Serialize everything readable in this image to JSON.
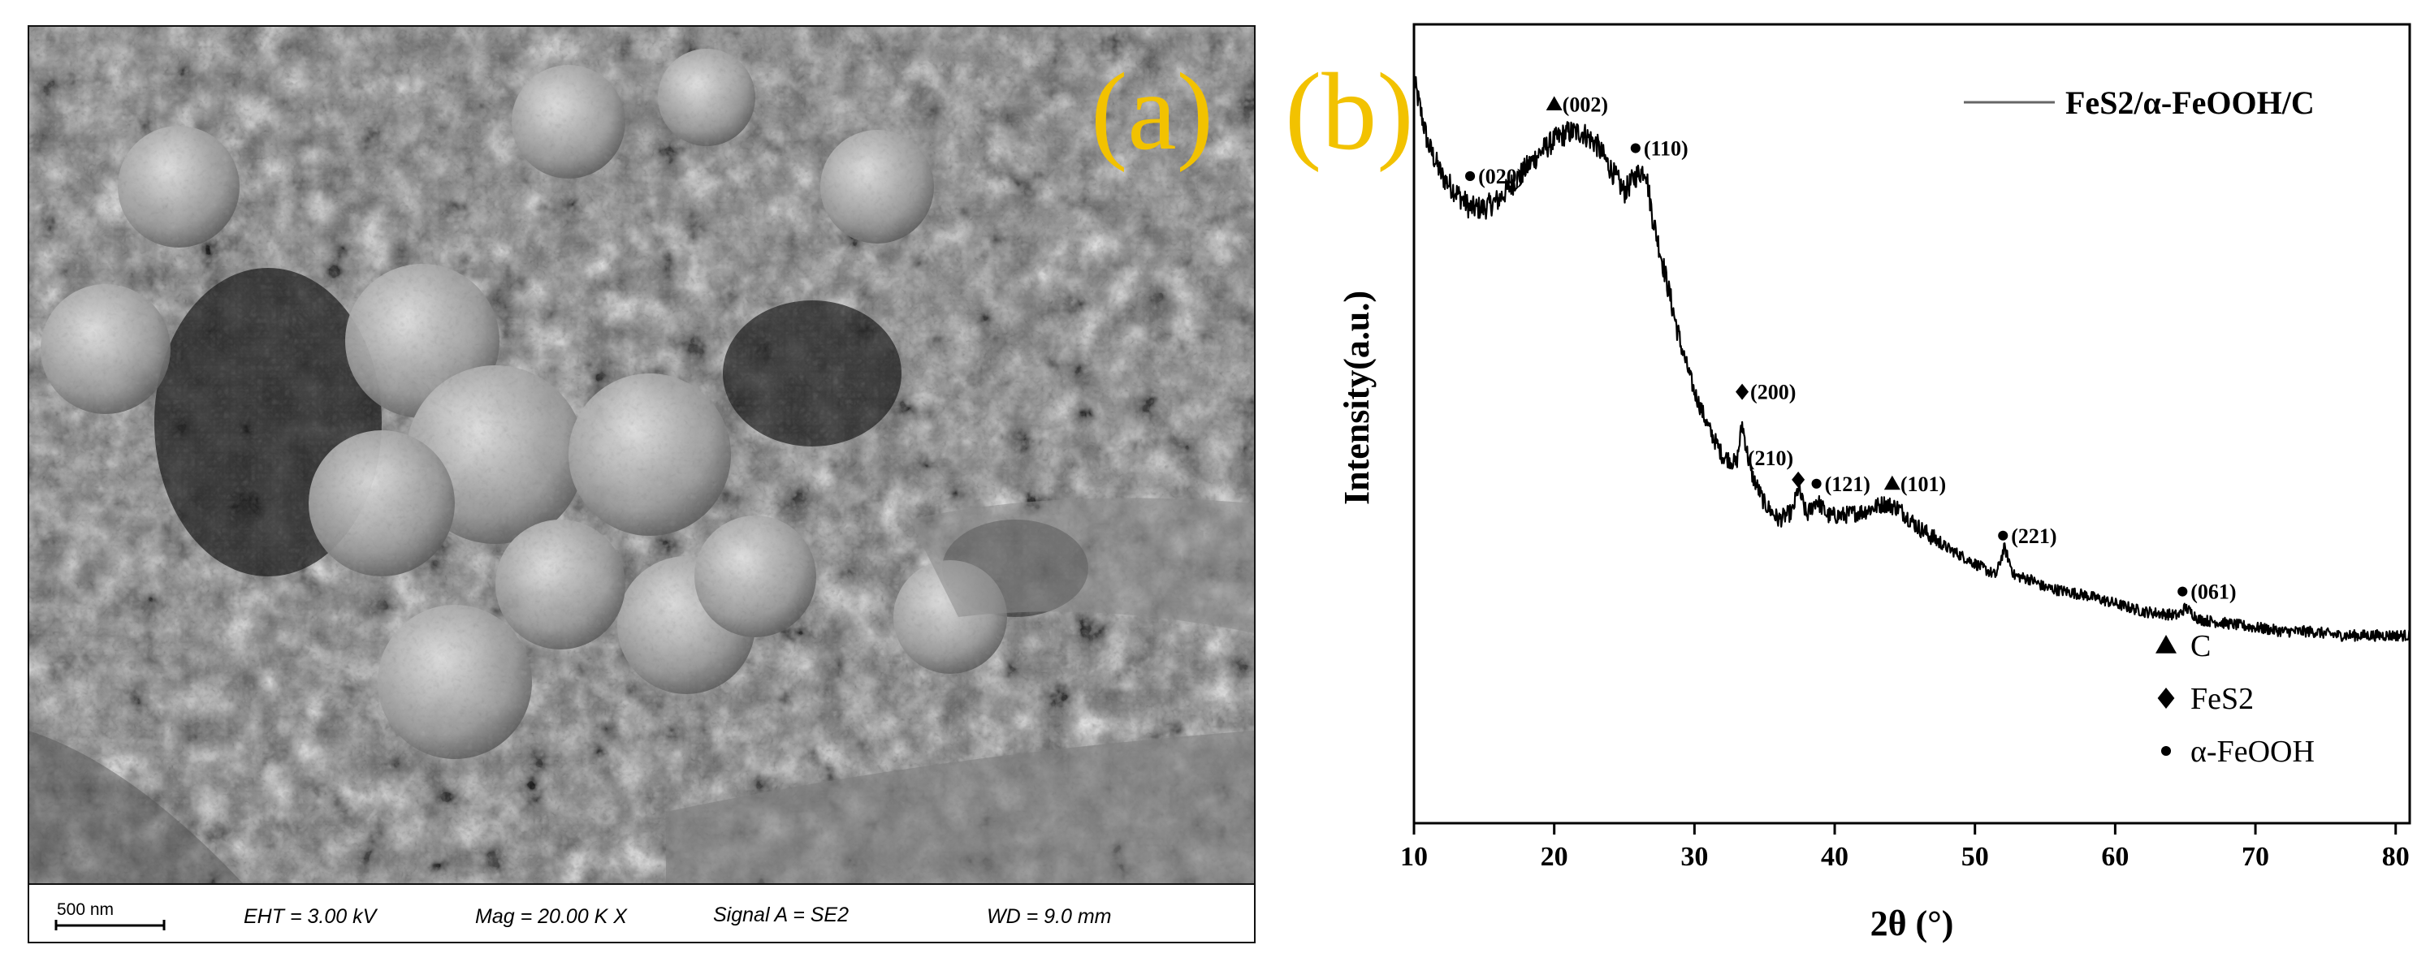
{
  "panel_a": {
    "label": "(a)",
    "databar": {
      "scale_bar": "500 nm",
      "eht": "EHT =  3.00 kV",
      "mag": "Mag =   20.00 K X",
      "signal": "Signal A = SE2",
      "wd": "WD =  9.0 mm"
    }
  },
  "panel_b": {
    "label": "(b)",
    "legend_series": "FeS2/α-FeOOH/C",
    "legend_markers": [
      {
        "marker": "triangle",
        "label": "C"
      },
      {
        "marker": "diamond",
        "label": "FeS2"
      },
      {
        "marker": "circle",
        "label": "α-FeOOH"
      }
    ]
  },
  "chart_data": {
    "type": "line",
    "title": "",
    "xlabel": "2θ  (°)",
    "ylabel": "Intensity(a.u.)",
    "xlim": [
      10,
      81
    ],
    "ylim": [
      0,
      100
    ],
    "x_ticks": [
      10,
      20,
      30,
      40,
      50,
      60,
      70,
      80
    ],
    "y_ticks": [],
    "grid": false,
    "legend_placement": "top-right",
    "series": [
      {
        "name": "FeS2/α-FeOOH/C",
        "color": "#000000",
        "x": [
          10,
          11,
          12,
          13,
          14,
          15,
          16,
          17,
          18,
          19,
          20,
          21,
          22,
          23,
          24,
          25,
          25.8,
          26.5,
          27,
          28,
          29,
          30,
          31,
          32,
          33,
          33.4,
          34,
          35,
          36,
          37,
          37.4,
          38,
          38.7,
          39.5,
          40.5,
          42,
          43.5,
          44.5,
          46,
          48,
          50,
          51.5,
          52.1,
          52.8,
          54,
          55,
          58,
          60,
          62,
          64.5,
          65,
          66,
          68,
          70,
          72,
          74,
          76,
          78,
          80,
          81
        ],
        "y": [
          93,
          85,
          81,
          79,
          77,
          77,
          78,
          80,
          82,
          84,
          85.5,
          86.5,
          86.5,
          85,
          82,
          79,
          81,
          82,
          76,
          68,
          60,
          54,
          49.5,
          46,
          45,
          50,
          44,
          40,
          38,
          39,
          42,
          38.5,
          40.5,
          38.5,
          38.5,
          39,
          40,
          39.5,
          37,
          34.5,
          32.5,
          31,
          34.5,
          31,
          30.5,
          29.5,
          28.5,
          27.5,
          26.5,
          26,
          27,
          25.5,
          25,
          24.5,
          24,
          24,
          23.5,
          23.5,
          23.5,
          23.5
        ]
      }
    ],
    "peak_annotations": [
      {
        "x": 14,
        "y": 81,
        "marker": "circle",
        "label": "(020)"
      },
      {
        "x": 20,
        "y": 90,
        "marker": "triangle",
        "label": "(002)"
      },
      {
        "x": 25.8,
        "y": 84.5,
        "marker": "circle",
        "label": "(110)"
      },
      {
        "x": 33.4,
        "y": 54,
        "marker": "diamond",
        "label": "(200)"
      },
      {
        "x": 37.4,
        "y": 43,
        "marker": "diamond",
        "label": "(210)"
      },
      {
        "x": 38.7,
        "y": 42.5,
        "marker": "circle",
        "label": "(121)"
      },
      {
        "x": 44.1,
        "y": 42.5,
        "marker": "triangle",
        "label": "(101)"
      },
      {
        "x": 52,
        "y": 36,
        "marker": "circle",
        "label": "(221)"
      },
      {
        "x": 64.8,
        "y": 29,
        "marker": "circle",
        "label": "(061)"
      }
    ]
  }
}
